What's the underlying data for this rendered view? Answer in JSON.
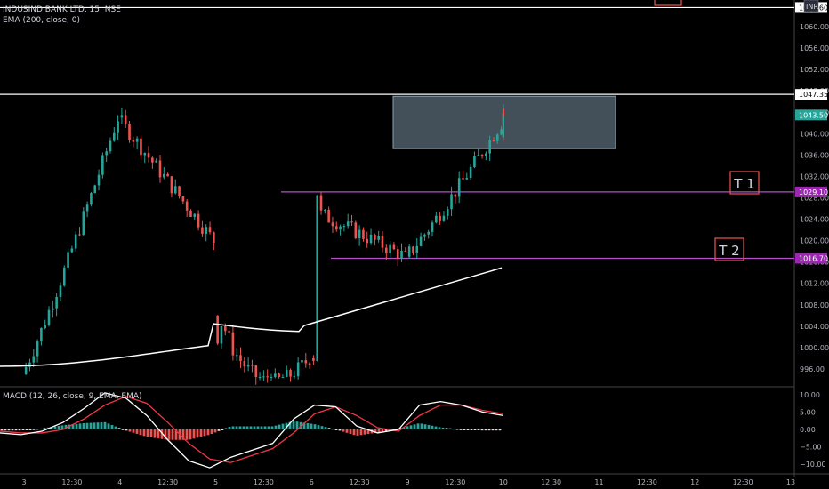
{
  "header": {
    "symbol_line": "INDUSIND BANK LTD, 15, NSE",
    "indicator_line": "EMA (200, close, 0)",
    "currency_badge": "INR"
  },
  "macd_panel": {
    "legend": "MACD (12, 26, close, 9, EMA, EMA)"
  },
  "annotations": {
    "t1_label": "T 1",
    "t2_label": "T 2"
  },
  "colors": {
    "up": "#26a69a",
    "down": "#ef5350",
    "up_light": "#b2dfdb",
    "down_light": "#ffcdd2",
    "ema": "#ffffff",
    "level_line": "#b44fc8",
    "level_badge": "#9c27b0",
    "price_badge": "#26a69a",
    "box_fill": "#5a6b78",
    "macd_line": "#ffffff",
    "signal_line": "#f23645"
  },
  "chart_data": [
    {
      "type": "candlestick",
      "title": "INDUSIND BANK LTD, 15, NSE",
      "ylim": [
        993,
        1065
      ],
      "y_ticks": [
        "996.00",
        "1000.00",
        "1004.00",
        "1008.00",
        "1012.00",
        "1016.00",
        "1020.00",
        "1024.00",
        "1028.00",
        "1032.00",
        "1036.00",
        "1040.00",
        "1044.00",
        "1048.00",
        "1052.00",
        "1056.00",
        "1060.00"
      ],
      "x_tick_labels": [
        "3",
        "12:30",
        "4",
        "12:30",
        "5",
        "12:30",
        "6",
        "12:30",
        "9",
        "12:30",
        "10",
        "12:30",
        "11",
        "12:30",
        "12",
        "12:30",
        "13"
      ],
      "price_labels": {
        "last": "1043.50",
        "t1": "1029.10",
        "t2": "1016.70",
        "high": "1047.35",
        "top": "1063.60"
      },
      "horizontal_lines": [
        {
          "name": "T1",
          "price": 1029.1,
          "x_from": "4 end"
        },
        {
          "name": "T2",
          "price": 1016.7,
          "x_from": "6 mid"
        },
        {
          "name": "high",
          "price": 1047.35
        },
        {
          "name": "top",
          "price": 1063.6
        }
      ],
      "rectangle": {
        "price_low": 1037.2,
        "price_high": 1047.0,
        "from": "9 open",
        "to": "10 mid"
      },
      "series": [
        {
          "name": "EMA (200, close, 0)",
          "values_desc": "rising from ~997 on day 3 to ~1015 on 10"
        }
      ],
      "ohlc_days": [
        {
          "day": "3",
          "open": 995,
          "high": 1047.5,
          "low": 994,
          "close": 1043,
          "shape": "rally"
        },
        {
          "day": "4",
          "open": 1043,
          "high": 1047.3,
          "low": 1018,
          "close": 1020,
          "shape": "decline"
        },
        {
          "day": "5",
          "open": 1006,
          "high": 1011,
          "low": 994,
          "close": 998,
          "shape": "chop_low"
        },
        {
          "day": "6",
          "open": 998,
          "high": 1031,
          "low": 997,
          "close": 1017,
          "shape": "gap_up_then_fade"
        },
        {
          "day": "9",
          "open": 1017,
          "high": 1047,
          "low": 1016,
          "close": 1042,
          "shape": "rally"
        },
        {
          "day": "10",
          "open": 1042,
          "high": 1046,
          "low": 1033,
          "close": 1043.5,
          "shape": "range"
        }
      ]
    },
    {
      "type": "line",
      "title": "MACD (12, 26, close, 9, EMA, EMA)",
      "ylim": [
        -12,
        12
      ],
      "y_ticks": [
        "10.00",
        "5.00",
        "0.00",
        "−5.00",
        "−10.00"
      ],
      "series": [
        {
          "name": "MACD",
          "values": [
            -1,
            -1.5,
            -0.5,
            2,
            6,
            10.5,
            9,
            4,
            -3,
            -9,
            -11,
            -8,
            -6,
            -4,
            3,
            7,
            6.5,
            1,
            -1,
            0,
            7,
            8,
            7,
            5,
            4
          ]
        },
        {
          "name": "Signal",
          "values": [
            -0.5,
            -1,
            -1,
            0,
            3,
            7,
            9.5,
            7.5,
            2,
            -4,
            -8.5,
            -9.5,
            -7.5,
            -5.5,
            -1,
            4.5,
            6.5,
            4,
            0.5,
            -0.5,
            4,
            7,
            7,
            5.5,
            4.5
          ]
        }
      ]
    }
  ]
}
